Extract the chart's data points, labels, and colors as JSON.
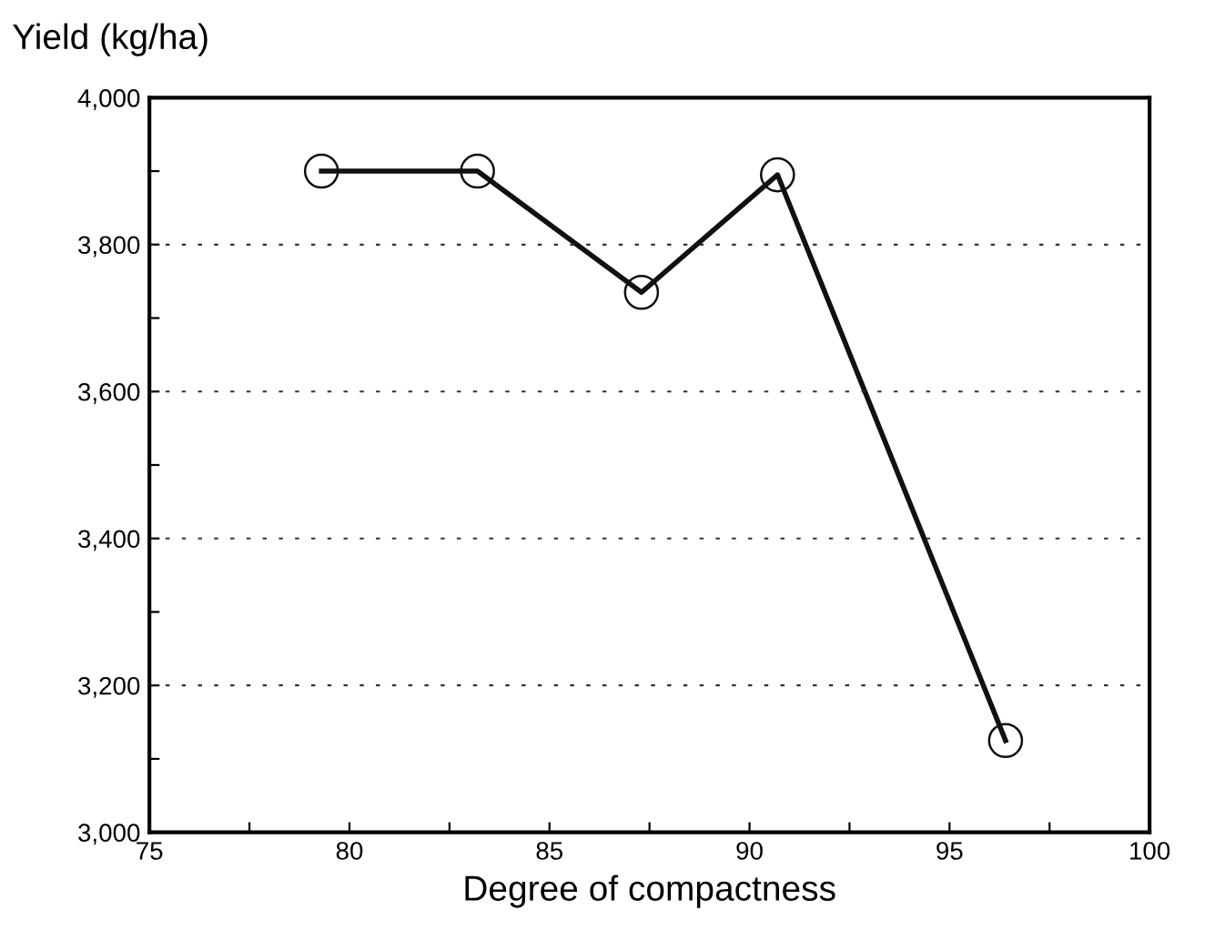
{
  "chart_data": {
    "type": "line",
    "ylabel": "Yield (kg/ha)",
    "xlabel": "Degree of compactness",
    "x": [
      79.3,
      83.2,
      87.3,
      90.7,
      96.4
    ],
    "series": [
      {
        "color": "#111111",
        "values": [
          3900,
          3900,
          3735,
          3895,
          3125
        ]
      }
    ],
    "xlim": [
      75,
      100
    ],
    "ylim": [
      3000,
      4000
    ],
    "xticks": [
      75,
      {
        "value": 77.5,
        "label": null
      },
      80,
      {
        "value": 82.5,
        "label": null
      },
      85,
      {
        "value": 87.5,
        "label": null
      },
      90,
      {
        "value": 92.5,
        "label": null
      },
      95,
      {
        "value": 97.5,
        "label": null
      },
      100
    ],
    "yticks": [
      "3,000",
      {
        "value": 3100,
        "label": null
      },
      {
        "value": 3200,
        "label": "3,200"
      },
      {
        "value": 3300,
        "label": null
      },
      {
        "value": 3400,
        "label": "3,400"
      },
      {
        "value": 3500,
        "label": null
      },
      {
        "value": 3600,
        "label": "3,600"
      },
      {
        "value": 3700,
        "label": null
      },
      {
        "value": 3800,
        "label": "3,800"
      },
      {
        "value": 3900,
        "label": null
      },
      {
        "value": 4000,
        "label": "4,000"
      }
    ],
    "grid": "y",
    "marker": "circle",
    "line_style": "solid"
  }
}
